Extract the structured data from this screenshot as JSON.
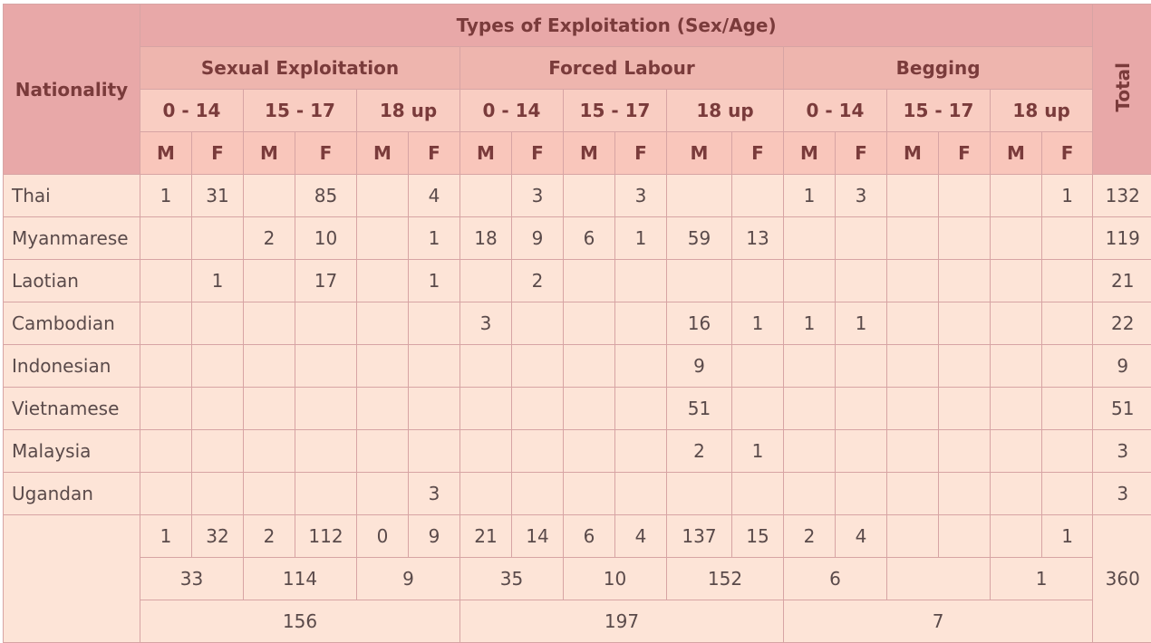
{
  "header": {
    "nationality": "Nationality",
    "types_title": "Types of Exploitation (Sex/Age)",
    "total": "Total",
    "groups": [
      "Sexual Exploitation",
      "Forced Labour",
      "Begging"
    ],
    "age_bands": [
      "0 - 14",
      "15 - 17",
      "18 up"
    ],
    "sexes": [
      "M",
      "F"
    ]
  },
  "rows": [
    {
      "nationality": "Thai",
      "cells": [
        "1",
        "31",
        "",
        "85",
        "",
        "4",
        "",
        "3",
        "",
        "3",
        "",
        "",
        "1",
        "3",
        "",
        "",
        "",
        "1"
      ],
      "total": "132"
    },
    {
      "nationality": "Myanmarese",
      "cells": [
        "",
        "",
        "2",
        "10",
        "",
        "1",
        "18",
        "9",
        "6",
        "1",
        "59",
        "13",
        "",
        "",
        "",
        "",
        "",
        ""
      ],
      "total": "119"
    },
    {
      "nationality": "Laotian",
      "cells": [
        "",
        "1",
        "",
        "17",
        "",
        "1",
        "",
        "2",
        "",
        "",
        "",
        "",
        "",
        "",
        "",
        "",
        "",
        ""
      ],
      "total": "21"
    },
    {
      "nationality": "Cambodian",
      "cells": [
        "",
        "",
        "",
        "",
        "",
        "",
        "3",
        "",
        "",
        "",
        "16",
        "1",
        "1",
        "1",
        "",
        "",
        "",
        ""
      ],
      "total": "22"
    },
    {
      "nationality": "Indonesian",
      "cells": [
        "",
        "",
        "",
        "",
        "",
        "",
        "",
        "",
        "",
        "",
        "9",
        "",
        "",
        "",
        "",
        "",
        "",
        ""
      ],
      "total": "9"
    },
    {
      "nationality": "Vietnamese",
      "cells": [
        "",
        "",
        "",
        "",
        "",
        "",
        "",
        "",
        "",
        "",
        "51",
        "",
        "",
        "",
        "",
        "",
        "",
        ""
      ],
      "total": "51"
    },
    {
      "nationality": "Malaysia",
      "cells": [
        "",
        "",
        "",
        "",
        "",
        "",
        "",
        "",
        "",
        "",
        "2",
        "1",
        "",
        "",
        "",
        "",
        "",
        ""
      ],
      "total": "3"
    },
    {
      "nationality": "Ugandan",
      "cells": [
        "",
        "",
        "",
        "",
        "",
        "3",
        "",
        "",
        "",
        "",
        "",
        "",
        "",
        "",
        "",
        "",
        "",
        ""
      ],
      "total": "3"
    }
  ],
  "totals": {
    "by_sex": [
      "1",
      "32",
      "2",
      "112",
      "0",
      "9",
      "21",
      "14",
      "6",
      "4",
      "137",
      "15",
      "2",
      "4",
      "",
      "",
      "",
      "1"
    ],
    "by_age": [
      "33",
      "114",
      "9",
      "35",
      "10",
      "152",
      "6",
      "",
      "1"
    ],
    "by_type": [
      "156",
      "197",
      "7"
    ],
    "grand_total": "360"
  }
}
